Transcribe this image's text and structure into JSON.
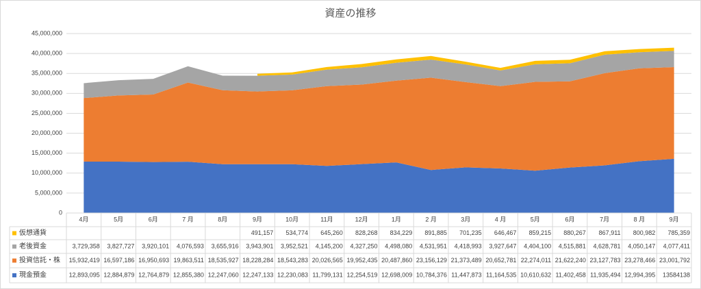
{
  "chart_data": {
    "type": "area",
    "stacked": true,
    "title": "資産の推移",
    "categories": [
      "4月",
      "5月",
      "6月",
      "7 月",
      "8月",
      "9月",
      "10月",
      "11月",
      "12月",
      "1月",
      "2 月",
      "3月",
      "4 月",
      "5月",
      "6月",
      "7月",
      "8 月",
      "9月"
    ],
    "series": [
      {
        "name": "現金預金",
        "color": "#4472c4",
        "values": [
          12893095,
          12884879,
          12764879,
          12855380,
          12247060,
          12247133,
          12230083,
          11799131,
          12254519,
          12698009,
          10784376,
          11447873,
          11164535,
          10610632,
          11402458,
          11935494,
          12994395,
          13584138
        ],
        "value_labels": [
          "12,893,095",
          "12,884,879",
          "12,764,879",
          "12,855,380",
          "12,247,060",
          "12,247,133",
          "12,230,083",
          "11,799,131",
          "12,254,519",
          "12,698,009",
          "10,784,376",
          "11,447,873",
          "11,164,535",
          "10,610,632",
          "11,402,458",
          "11,935,494",
          "12,994,395",
          "13584138"
        ]
      },
      {
        "name": "投資信託・株",
        "color": "#ed7d31",
        "values": [
          15932419,
          16597186,
          16950693,
          19863511,
          18535927,
          18228284,
          18543283,
          20026565,
          19952435,
          20487860,
          23156129,
          21373489,
          20652781,
          22274011,
          21622240,
          23127783,
          23278466,
          23001792
        ],
        "value_labels": [
          "15,932,419",
          "16,597,186",
          "16,950,693",
          "19,863,511",
          "18,535,927",
          "18,228,284",
          "18,543,283",
          "20,026,565",
          "19,952,435",
          "20,487,860",
          "23,156,129",
          "21,373,489",
          "20,652,781",
          "22,274,011",
          "21,622,240",
          "23,127,783",
          "23,278,466",
          "23,001,792"
        ]
      },
      {
        "name": "老後資金",
        "color": "#a5a5a5",
        "values": [
          3729358,
          3827727,
          3920101,
          4076593,
          3655916,
          3943901,
          3952521,
          4145200,
          4327250,
          4498080,
          4531951,
          4418993,
          3927647,
          4404100,
          4515881,
          4628781,
          4050147,
          4077411
        ],
        "value_labels": [
          "3,729,358",
          "3,827,727",
          "3,920,101",
          "4,076,593",
          "3,655,916",
          "3,943,901",
          "3,952,521",
          "4,145,200",
          "4,327,250",
          "4,498,080",
          "4,531,951",
          "4,418,993",
          "3,927,647",
          "4,404,100",
          "4,515,881",
          "4,628,781",
          "4,050,147",
          "4,077,411"
        ]
      },
      {
        "name": "仮想通貨",
        "color": "#ffc000",
        "values": [
          null,
          null,
          null,
          null,
          null,
          491157,
          534774,
          645260,
          828268,
          834229,
          891885,
          701235,
          646467,
          859215,
          880267,
          867911,
          800982,
          785359
        ],
        "value_labels": [
          null,
          null,
          null,
          null,
          null,
          "491,157",
          "534,774",
          "645,260",
          "828,268",
          "834,229",
          "891,885",
          "701,235",
          "646,467",
          "859,215",
          "880,267",
          "867,911",
          "800,982",
          "785,359"
        ]
      }
    ],
    "ylim": [
      0,
      45000000
    ],
    "yticks": [
      {
        "value": 0,
        "label": "0"
      },
      {
        "value": 5000000,
        "label": "5,000,000"
      },
      {
        "value": 10000000,
        "label": "10,000,000"
      },
      {
        "value": 15000000,
        "label": "15,000,000"
      },
      {
        "value": 20000000,
        "label": "20,000,000"
      },
      {
        "value": 25000000,
        "label": "25,000,000"
      },
      {
        "value": 30000000,
        "label": "30,000,000"
      },
      {
        "value": 35000000,
        "label": "35,000,000"
      },
      {
        "value": 40000000,
        "label": "40,000,000"
      },
      {
        "value": 45000000,
        "label": "45,000,000"
      }
    ],
    "grid": true
  }
}
